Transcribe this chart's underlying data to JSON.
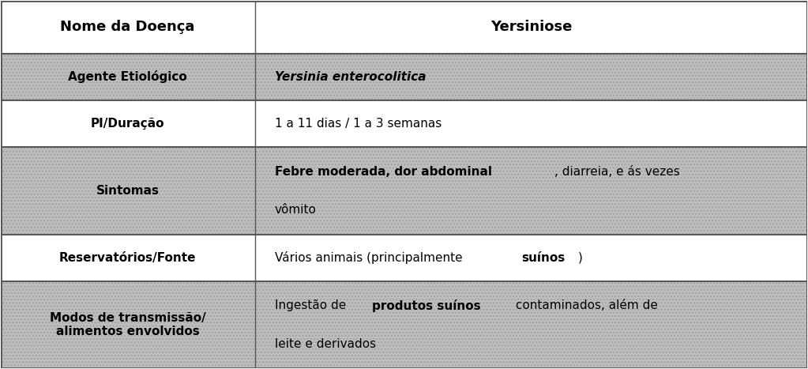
{
  "title_left": "Nome da Doença",
  "title_right": "Yersiniose",
  "rows": [
    {
      "label": "Agente Etiológico",
      "value_parts": [
        {
          "text": "Yersinia enterocolitica",
          "bold": true,
          "italic": true
        }
      ],
      "shaded": true
    },
    {
      "label": "PI/Duração",
      "value_parts": [
        {
          "text": "1 a 11 dias / 1 a 3 semanas",
          "bold": false,
          "italic": false
        }
      ],
      "shaded": false
    },
    {
      "label": "Sintomas",
      "value_parts": [
        {
          "text": "Febre moderada, dor abdominal",
          "bold": true,
          "italic": false
        },
        {
          "text": ", diarreia, e ás vezes\nvômito",
          "bold": false,
          "italic": false
        }
      ],
      "shaded": true,
      "multiline": true
    },
    {
      "label": "Reservatórios/Fonte",
      "value_parts": [
        {
          "text": "Vários animais (principalmente ",
          "bold": false,
          "italic": false
        },
        {
          "text": "suínos",
          "bold": true,
          "italic": false
        },
        {
          "text": ")",
          "bold": false,
          "italic": false
        }
      ],
      "shaded": false
    },
    {
      "label": "Modos de transmissão/\nalimentos envolvidos",
      "value_parts": [
        {
          "text": "Ingestão de ",
          "bold": false,
          "italic": false
        },
        {
          "text": "produtos suínos",
          "bold": true,
          "italic": false
        },
        {
          "text": " contaminados, além de\nleite e derivados",
          "bold": false,
          "italic": false
        }
      ],
      "shaded": true,
      "multiline": true
    }
  ],
  "shaded_color": "#c8c8c8",
  "white_color": "#ffffff",
  "border_color": "#555555",
  "text_color": "#000000",
  "figsize": [
    10.23,
    4.67
  ],
  "dpi": 100,
  "col_split": 0.315,
  "hatch_pattern": "....",
  "font_size": 11,
  "header_font_size": 13
}
